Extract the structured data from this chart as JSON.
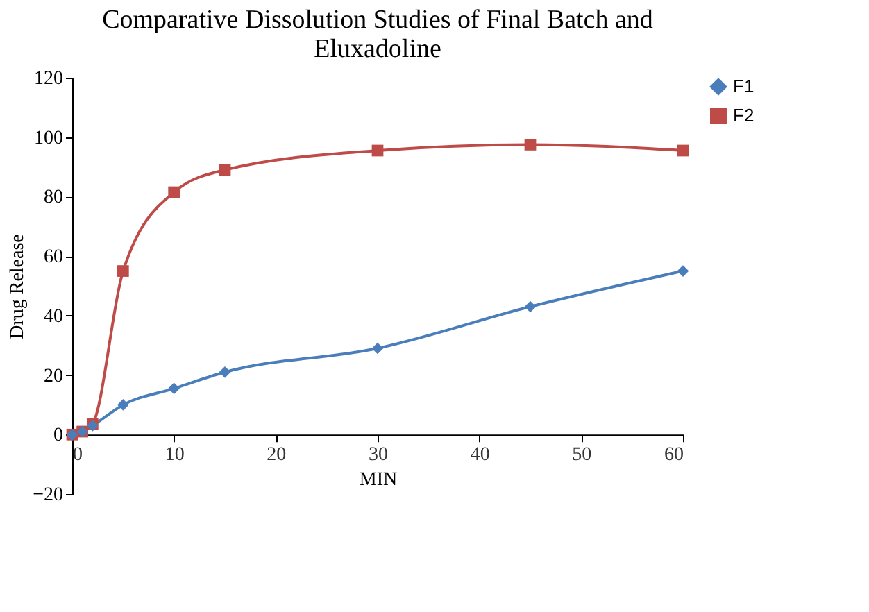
{
  "chart_data": {
    "type": "line",
    "title": [
      "Comparative Dissolution Studies of Final Batch and",
      "Eluxadoline"
    ],
    "xlabel": "MIN",
    "ylabel": "Drug Release",
    "x": [
      0,
      1,
      2,
      5,
      10,
      15,
      30,
      45,
      60
    ],
    "series": [
      {
        "name": "F1",
        "color": "#4a7ebb",
        "marker": "diamond",
        "values": [
          0,
          1,
          3,
          10,
          15.5,
          21,
          29,
          43,
          55
        ]
      },
      {
        "name": "F2",
        "color": "#be4b48",
        "marker": "square",
        "values": [
          0,
          1,
          3.5,
          55,
          81.5,
          89,
          95.5,
          97.5,
          95.5
        ]
      }
    ],
    "xlim": [
      0,
      60
    ],
    "xticks": [
      0,
      10,
      20,
      30,
      40,
      50,
      60
    ],
    "ylim": [
      -20,
      120
    ],
    "yticks": [
      -20,
      0,
      20,
      40,
      60,
      80,
      100,
      120
    ],
    "grid": false,
    "legend": "right",
    "line_style": "solid"
  }
}
